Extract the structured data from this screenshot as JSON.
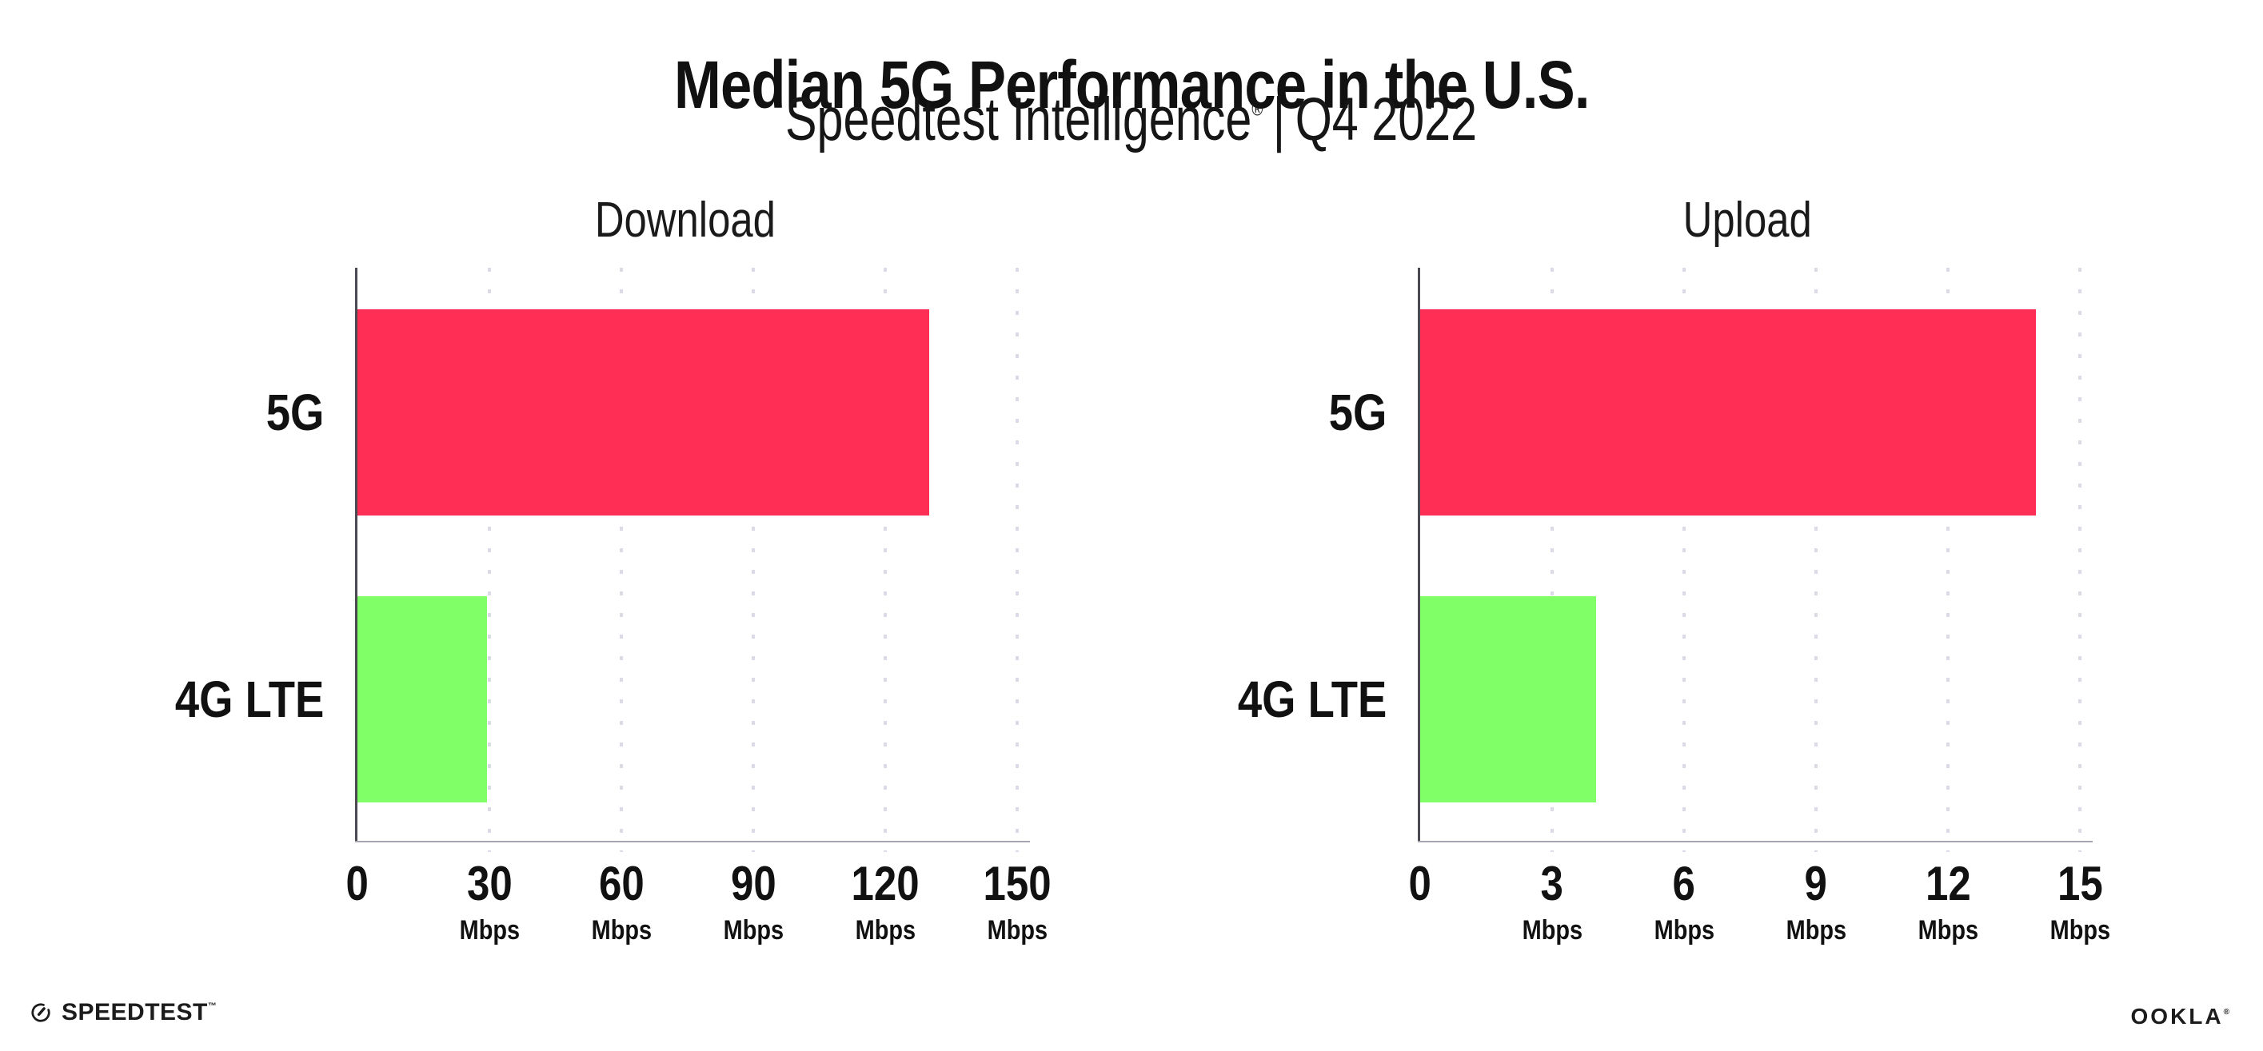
{
  "header": {
    "title": "Median 5G Performance in the U.S.",
    "subtitle_brand": "Speedtest Intelligence",
    "subtitle_registered": "®",
    "subtitle_divider": "|",
    "subtitle_period": "Q4 2022"
  },
  "chart_data": [
    {
      "type": "bar",
      "orientation": "horizontal",
      "title": "Download",
      "categories": [
        "5G",
        "4G LTE"
      ],
      "values": [
        130,
        29.5
      ],
      "unit": "Mbps",
      "xlim": [
        0,
        150
      ],
      "ticks": [
        0,
        30,
        60,
        90,
        120,
        150
      ],
      "bar_colors": [
        "#ff2e55",
        "#80ff66"
      ],
      "grid": "dotted vertical gridlines at each tick",
      "legend": "none"
    },
    {
      "type": "bar",
      "orientation": "horizontal",
      "title": "Upload",
      "categories": [
        "5G",
        "4G LTE"
      ],
      "values": [
        14,
        4
      ],
      "unit": "Mbps",
      "xlim": [
        0,
        15
      ],
      "ticks": [
        0,
        3,
        6,
        9,
        12,
        15
      ],
      "bar_colors": [
        "#ff2e55",
        "#80ff66"
      ],
      "grid": "dotted vertical gridlines at each tick",
      "legend": "none"
    }
  ],
  "footer": {
    "speedtest_label": "SPEEDTEST",
    "speedtest_trademark": "™",
    "ookla_label": "OOKLA",
    "ookla_registered": "®"
  },
  "colors": {
    "background": "#ffffff",
    "bar_5g": "#ff2e55",
    "bar_4g_lte": "#80ff66",
    "gridline": "#dcdae6",
    "y_axis": "#4c4953",
    "x_axis": "#a8a6b0",
    "text": "#111111"
  }
}
